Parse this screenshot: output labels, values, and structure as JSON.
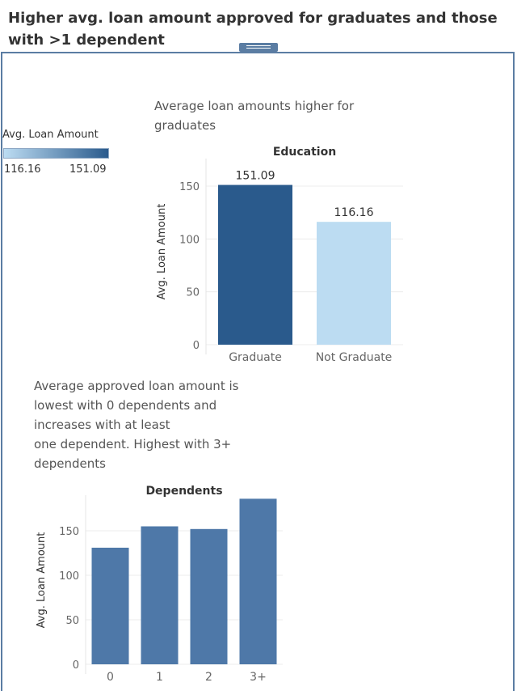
{
  "title": "Higher avg. loan amount approved for graduates and those with >1 dependent",
  "legend": {
    "title": "Avg. Loan Amount",
    "min_label": "116.16",
    "max_label": "151.09",
    "colors": {
      "low": "#bcdcf2",
      "high": "#2a5a8c"
    }
  },
  "captions": {
    "education": "Average loan amounts higher for\ngraduates",
    "dependents": "Average approved loan amount is\nlowest with 0 dependents and\nincreases with at least\n one dependent. Highest with 3+\ndependents"
  },
  "chart_data": [
    {
      "type": "bar",
      "title": "Education",
      "categories": [
        "Graduate",
        "Not Graduate"
      ],
      "values": [
        151.09,
        116.16
      ],
      "data_labels": [
        "151.09",
        "116.16"
      ],
      "colors": [
        "#2a5a8c",
        "#bcdcf2"
      ],
      "ylabel": "Avg. Loan Amount",
      "ylim": [
        0,
        176
      ],
      "yticks": [
        0,
        50,
        100,
        150
      ],
      "grid": true
    },
    {
      "type": "bar",
      "title": "Dependents",
      "categories": [
        "0",
        "1",
        "2",
        "3+"
      ],
      "values": [
        131,
        155,
        152,
        186
      ],
      "colors": [
        "#4e78a8",
        "#4e78a8",
        "#4e78a8",
        "#4e78a8"
      ],
      "ylabel": "Avg. Loan Amount",
      "ylim": [
        0,
        190
      ],
      "yticks": [
        0,
        50,
        100,
        150
      ],
      "grid": true
    }
  ]
}
